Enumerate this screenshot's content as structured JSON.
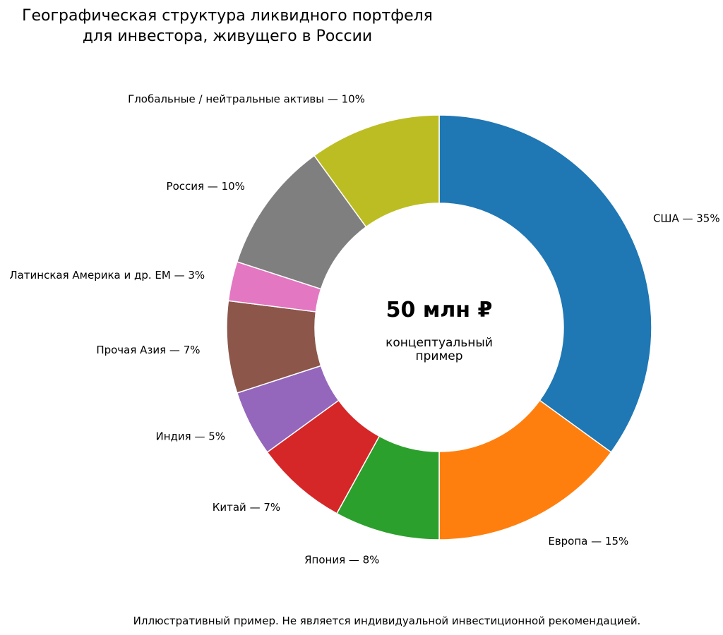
{
  "chart_data": {
    "type": "pie",
    "title_lines": [
      "Географическая структура ликвидного портфеля",
      "для инвестора, живущего в России"
    ],
    "center": {
      "value": "50 млн ₽",
      "caption_lines": [
        "концептуальный",
        "пример"
      ]
    },
    "slices": [
      {
        "name": "США",
        "value": 35,
        "label": "США — 35%",
        "color": "#1f77b4"
      },
      {
        "name": "Европа",
        "value": 15,
        "label": "Европа — 15%",
        "color": "#ff7f0e"
      },
      {
        "name": "Япония",
        "value": 8,
        "label": "Япония — 8%",
        "color": "#2ca02c"
      },
      {
        "name": "Китай",
        "value": 7,
        "label": "Китай — 7%",
        "color": "#d62728"
      },
      {
        "name": "Индия",
        "value": 5,
        "label": "Индия — 5%",
        "color": "#9467bd"
      },
      {
        "name": "Прочая Азия",
        "value": 7,
        "label": "Прочая Азия — 7%",
        "color": "#8c564b"
      },
      {
        "name": "Латинская Америка и др. EM",
        "value": 3,
        "label": "Латинская Америка и др. EM — 3%",
        "color": "#e377c2"
      },
      {
        "name": "Россия",
        "value": 10,
        "label": "Россия — 10%",
        "color": "#7f7f7f"
      },
      {
        "name": "Глобальные / нейтральные активы",
        "value": 10,
        "label": "Глобальные / нейтральные активы — 10%",
        "color": "#bcbd22"
      }
    ],
    "footnote": "Иллюстративный пример. Не является индивидуальной инвестиционной рекомендацией."
  }
}
